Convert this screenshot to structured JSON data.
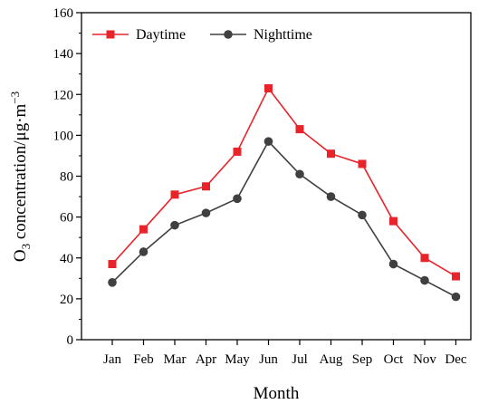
{
  "chart_data": {
    "type": "line",
    "categories": [
      "Jan",
      "Feb",
      "Mar",
      "Apr",
      "May",
      "Jun",
      "Jul",
      "Aug",
      "Sep",
      "Oct",
      "Nov",
      "Dec"
    ],
    "series": [
      {
        "name": "Daytime",
        "color": "#e8242a",
        "marker": "square",
        "values": [
          37,
          54,
          71,
          75,
          92,
          123,
          103,
          91,
          86,
          58,
          40,
          31
        ]
      },
      {
        "name": "Nighttime",
        "color": "#404040",
        "marker": "circle",
        "values": [
          28,
          43,
          56,
          62,
          69,
          97,
          81,
          70,
          61,
          37,
          29,
          21
        ]
      }
    ],
    "xlabel": "Month",
    "ylabel_main": "O",
    "ylabel_sub": "3",
    "ylabel_unit": " concentration/μg·m",
    "ylabel_sup": "−3",
    "ylim": [
      0,
      160
    ],
    "yticks": [
      "0",
      "20",
      "40",
      "60",
      "80",
      "100",
      "120",
      "140",
      "160"
    ],
    "grid": false,
    "legend_position": "top-left"
  }
}
